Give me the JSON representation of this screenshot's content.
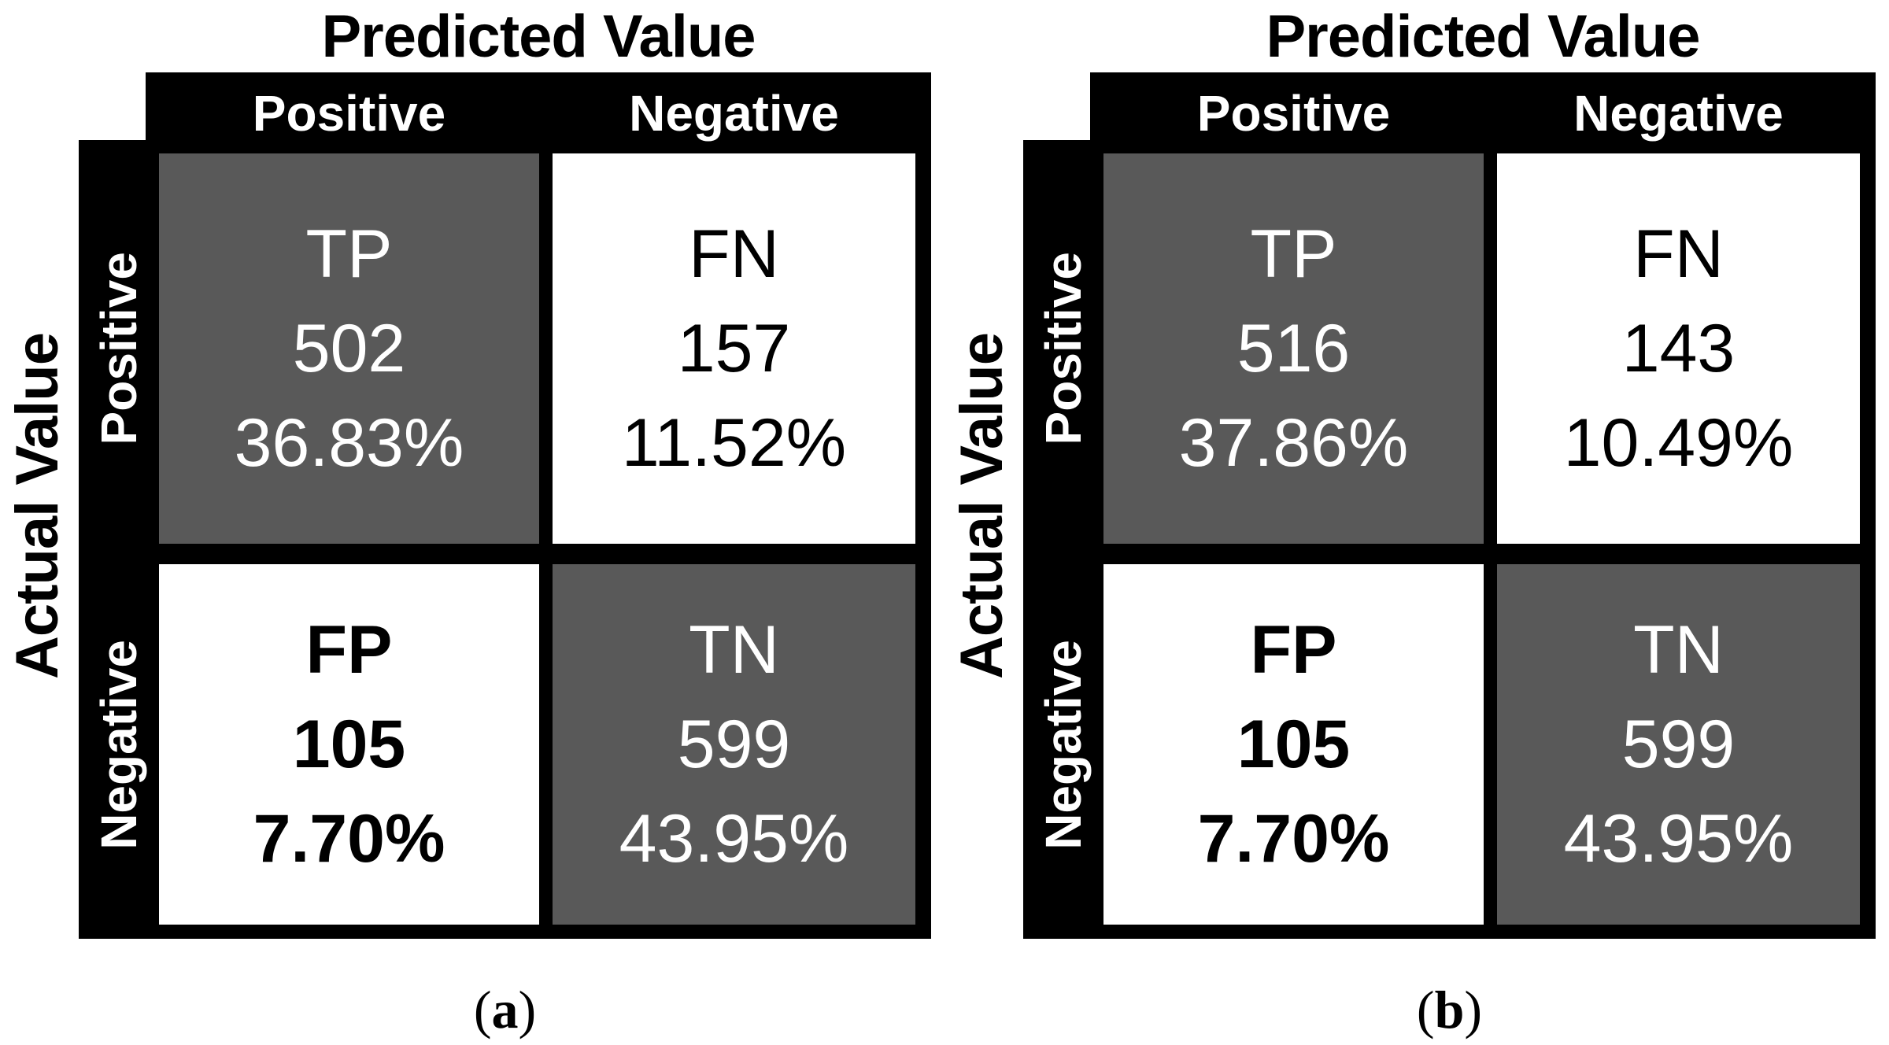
{
  "colors": {
    "shaded_cell": "#595959",
    "bar_background": "#000000",
    "cell_background": "#ffffff",
    "light_text": "#ffffff",
    "dark_text": "#000000"
  },
  "figure": {
    "panels": [
      {
        "top_axis_title": "Predicted Value",
        "left_axis_title": "Actual Value",
        "col_headers": [
          "Positive",
          "Negative"
        ],
        "row_headers": [
          "Positive",
          "Negative"
        ],
        "cells": {
          "tp": {
            "label": "TP",
            "count": "502",
            "percent": "36.83%"
          },
          "fn": {
            "label": "FN",
            "count": "157",
            "percent": "11.52%"
          },
          "fp": {
            "label": "FP",
            "count": "105",
            "percent": "7.70%"
          },
          "tn": {
            "label": "TN",
            "count": "599",
            "percent": "43.95%"
          }
        },
        "caption": {
          "open": "(",
          "letter": "a",
          "close": ")"
        }
      },
      {
        "top_axis_title": "Predicted Value",
        "left_axis_title": "Actual Value",
        "col_headers": [
          "Positive",
          "Negative"
        ],
        "row_headers": [
          "Positive",
          "Negative"
        ],
        "cells": {
          "tp": {
            "label": "TP",
            "count": "516",
            "percent": "37.86%"
          },
          "fn": {
            "label": "FN",
            "count": "143",
            "percent": "10.49%"
          },
          "fp": {
            "label": "FP",
            "count": "105",
            "percent": "7.70%"
          },
          "tn": {
            "label": "TN",
            "count": "599",
            "percent": "43.95%"
          }
        },
        "caption": {
          "open": "(",
          "letter": "b",
          "close": ")"
        }
      }
    ]
  },
  "chart_data": [
    {
      "type": "heatmap",
      "subtype": "confusion-matrix",
      "title": "(a)",
      "x_axis_label": "Predicted Value",
      "y_axis_label": "Actual Value",
      "x_categories": [
        "Positive",
        "Negative"
      ],
      "y_categories": [
        "Positive",
        "Negative"
      ],
      "cells": [
        {
          "actual": "Positive",
          "predicted": "Positive",
          "label": "TP",
          "count": 502,
          "percent": 36.83,
          "shaded": true
        },
        {
          "actual": "Positive",
          "predicted": "Negative",
          "label": "FN",
          "count": 157,
          "percent": 11.52,
          "shaded": false
        },
        {
          "actual": "Negative",
          "predicted": "Positive",
          "label": "FP",
          "count": 105,
          "percent": 7.7,
          "shaded": false,
          "bold": true
        },
        {
          "actual": "Negative",
          "predicted": "Negative",
          "label": "TN",
          "count": 599,
          "percent": 43.95,
          "shaded": true
        }
      ],
      "legend": "none",
      "grid": "black borders"
    },
    {
      "type": "heatmap",
      "subtype": "confusion-matrix",
      "title": "(b)",
      "x_axis_label": "Predicted Value",
      "y_axis_label": "Actual Value",
      "x_categories": [
        "Positive",
        "Negative"
      ],
      "y_categories": [
        "Positive",
        "Negative"
      ],
      "cells": [
        {
          "actual": "Positive",
          "predicted": "Positive",
          "label": "TP",
          "count": 516,
          "percent": 37.86,
          "shaded": true
        },
        {
          "actual": "Positive",
          "predicted": "Negative",
          "label": "FN",
          "count": 143,
          "percent": 10.49,
          "shaded": false
        },
        {
          "actual": "Negative",
          "predicted": "Positive",
          "label": "FP",
          "count": 105,
          "percent": 7.7,
          "shaded": false,
          "bold": true
        },
        {
          "actual": "Negative",
          "predicted": "Negative",
          "label": "TN",
          "count": 599,
          "percent": 43.95,
          "shaded": true
        }
      ],
      "legend": "none",
      "grid": "black borders"
    }
  ]
}
